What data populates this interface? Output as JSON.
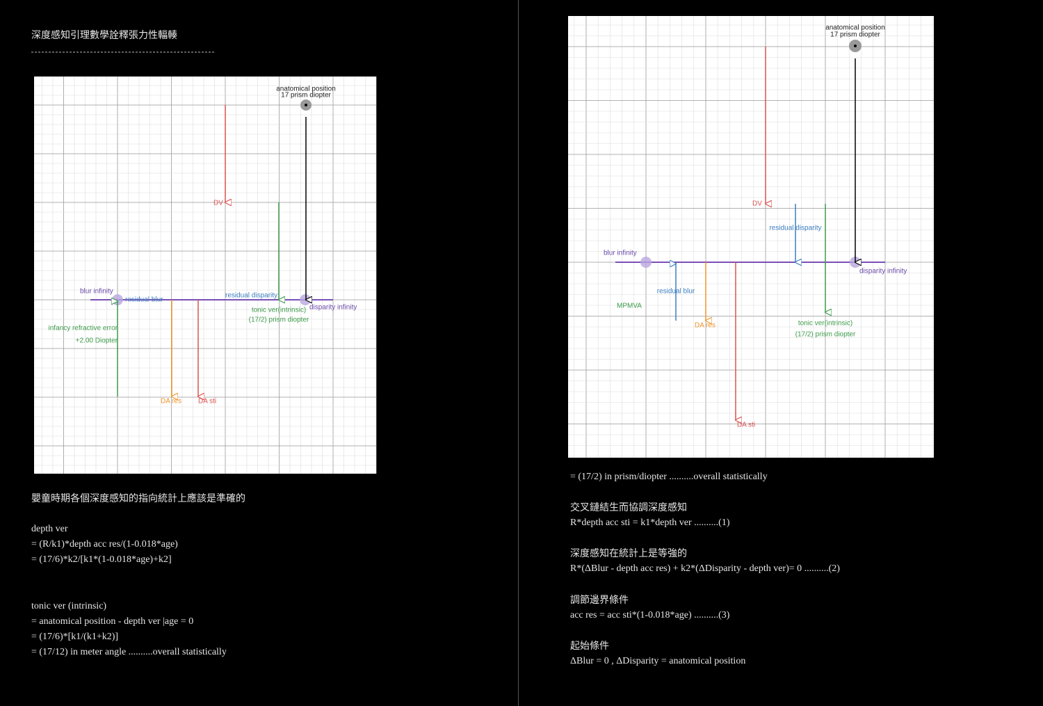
{
  "left": {
    "title": "深度感知引理數學詮釋張力性輻輳",
    "diagram": {
      "labels": [
        "anatomical position",
        "17 prism diopter",
        "DV",
        "blur infinity",
        "residual blur",
        "residual disparity",
        "disparity infinity",
        "tonic ver(intrinsic)",
        "(17/2) prism diopter",
        "infancy refractive error",
        "+2.00 Diopter",
        "DA res",
        "DA sti"
      ]
    },
    "lines": [
      "嬰童時期各個深度感知的指向統計上應該是準確的",
      "depth ver",
      "= (R/k1)*depth acc res/(1-0.018*age)",
      "= (17/6)*k2/[k1*(1-0.018*age)+k2]",
      "tonic ver (intrinsic)",
      "= anatomical position - depth ver |age = 0",
      "= (17/6)*[k1/(k1+k2)]",
      "= (17/12) in meter angle ..........overall statistically"
    ]
  },
  "right": {
    "diagram": {
      "labels": [
        "anatomical position",
        "17 prism diopter",
        "DV",
        "residual disparity",
        "blur infinity",
        "disparity infinity",
        "residual blur",
        "MPMVA",
        "DA res",
        "tonic ver(intrinsic)",
        "(17/2) prism diopter",
        "DA sti"
      ]
    },
    "lines": [
      "= (17/2) in prism/diopter ..........overall statistically",
      "交叉鏈結生而協調深度感知",
      "R*depth acc sti = k1*depth ver ..........(1)",
      "深度感知在統計上是等強的",
      "R*(ΔBlur - depth acc res) + k2*(ΔDisparity - depth ver)= 0 ..........(2)",
      "調節邊界條件",
      "acc res = acc sti*(1-0.018*age) ..........(3)",
      "起始條件",
      "ΔBlur = 0 , ΔDisparity = anatomical position"
    ]
  }
}
